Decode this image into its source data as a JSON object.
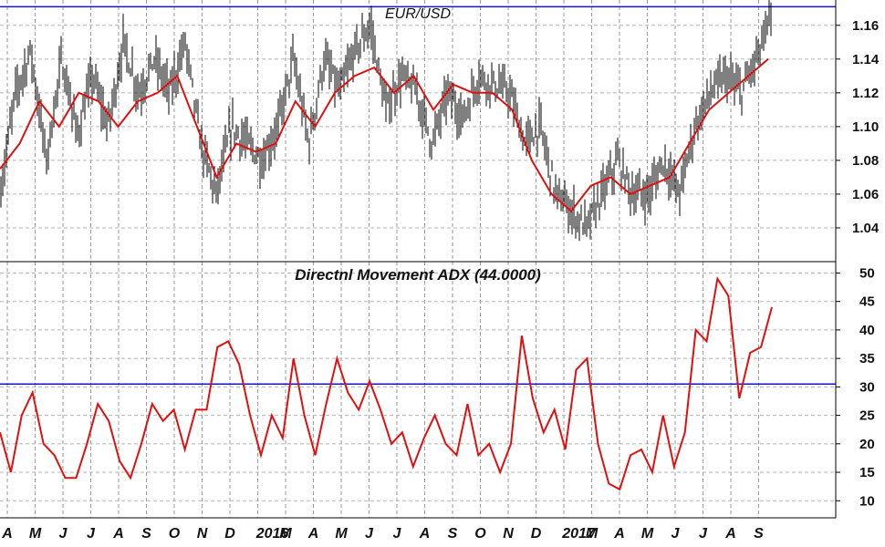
{
  "chart_data": [
    {
      "type": "line",
      "title": "EUR/USD",
      "ylim": [
        1.02,
        1.175
      ],
      "yticks": [
        "1.04",
        "1.06",
        "1.08",
        "1.10",
        "1.12",
        "1.14",
        "1.16"
      ],
      "xticks": [
        "A",
        "M",
        "J",
        "J",
        "A",
        "S",
        "O",
        "N",
        "D",
        "2016",
        "M",
        "A",
        "M",
        "J",
        "J",
        "A",
        "S",
        "O",
        "N",
        "D",
        "2017",
        "M",
        "A",
        "M",
        "J",
        "J",
        "A",
        "S"
      ],
      "reference_line": 1.171,
      "grid": true,
      "price_style": "bars",
      "price_color": "#000000",
      "moving_average_color": "#e01010",
      "reference_color": "#1414c8",
      "price_anchors": [
        1.06,
        1.12,
        1.145,
        1.08,
        1.14,
        1.095,
        1.13,
        1.1,
        1.15,
        1.12,
        1.14,
        1.12,
        1.15,
        1.09,
        1.06,
        1.1,
        1.09,
        1.08,
        1.1,
        1.14,
        1.09,
        1.14,
        1.12,
        1.145,
        1.16,
        1.11,
        1.13,
        1.12,
        1.09,
        1.12,
        1.105,
        1.13,
        1.125,
        1.12,
        1.09,
        1.1,
        1.06,
        1.05,
        1.04,
        1.06,
        1.08,
        1.06,
        1.06,
        1.08,
        1.06,
        1.1,
        1.12,
        1.13,
        1.12,
        1.14,
        1.165
      ],
      "moving_average": [
        1.075,
        1.09,
        1.115,
        1.1,
        1.12,
        1.115,
        1.1,
        1.115,
        1.12,
        1.13,
        1.1,
        1.07,
        1.09,
        1.085,
        1.09,
        1.115,
        1.1,
        1.12,
        1.13,
        1.135,
        1.12,
        1.13,
        1.11,
        1.125,
        1.12,
        1.12,
        1.11,
        1.08,
        1.06,
        1.05,
        1.065,
        1.07,
        1.06,
        1.065,
        1.07,
        1.09,
        1.11,
        1.12,
        1.13,
        1.14
      ]
    },
    {
      "type": "line",
      "title": "Directnl Movement ADX (44.0000)",
      "ylim": [
        7,
        52
      ],
      "yticks": [
        "10",
        "15",
        "20",
        "25",
        "30",
        "35",
        "40",
        "45",
        "50"
      ],
      "reference_line": 30.5,
      "grid": true,
      "line_color": "#e01010",
      "reference_color": "#1414c8",
      "series": [
        {
          "values": [
            22,
            15,
            25,
            29,
            20,
            18,
            14,
            14,
            20,
            27,
            24,
            17,
            14,
            20,
            27,
            24,
            26,
            19,
            26,
            26,
            37,
            38,
            34,
            25,
            18,
            25,
            21,
            35,
            25,
            18,
            27,
            35,
            29,
            26,
            31,
            26,
            20,
            22,
            16,
            21,
            25,
            20,
            18,
            27,
            18,
            20,
            15,
            20,
            39,
            28,
            22,
            26,
            19,
            33,
            35,
            20,
            13,
            12,
            18,
            19,
            15,
            25,
            16,
            22,
            40,
            38,
            49,
            46,
            28,
            36,
            37,
            44
          ]
        }
      ]
    }
  ]
}
